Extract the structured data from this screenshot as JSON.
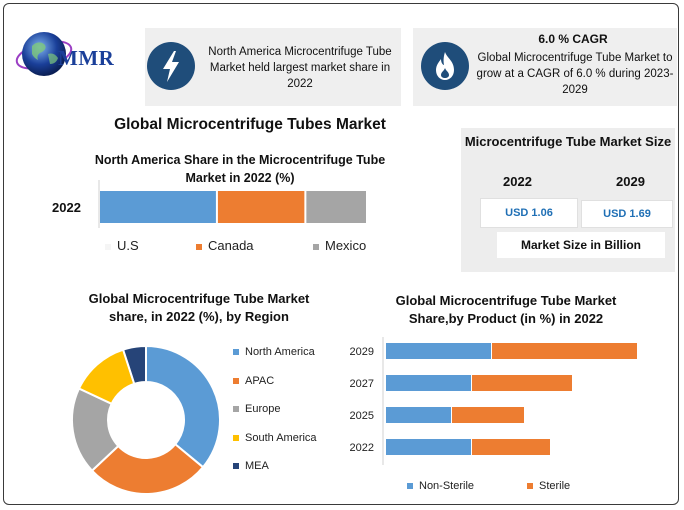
{
  "logo": {
    "text": "MMR"
  },
  "info1": {
    "text": "North America Microcentrifuge Tube Market held largest market share in 2022",
    "icon": "lightning-icon"
  },
  "info2": {
    "title": "6.0 % CAGR",
    "text": "Global Microcentrifuge Tube Market to grow at a CAGR of 6.0 % during 2023-2029",
    "icon": "flame-icon"
  },
  "main_title": "Global Microcentrifuge Tubes Market",
  "market_size": {
    "title": "Microcentrifuge Tube Market Size",
    "year_a": "2022",
    "year_b": "2029",
    "value_a": "USD 1.06",
    "value_b": "USD 1.69",
    "unit_label": "Market Size in Billion"
  },
  "colors": {
    "blue": "#5b9bd5",
    "orange": "#ed7d31",
    "gray": "#a5a5a5",
    "yellow": "#ffc000",
    "navy": "#264478",
    "icon_bg": "#1f4d7a"
  },
  "chart_data": [
    {
      "type": "bar",
      "stacked": true,
      "orientation": "horizontal",
      "title": "North America Share in the Microcentrifuge Tube Market in 2022 (%)",
      "categories": [
        "2022"
      ],
      "series": [
        {
          "name": "U.S",
          "values": [
            44
          ]
        },
        {
          "name": "Canada",
          "values": [
            33
          ]
        },
        {
          "name": "Mexico",
          "values": [
            23
          ]
        }
      ],
      "legend": "bottom"
    },
    {
      "type": "pie",
      "donut": true,
      "title": "Global Microcentrifuge Tube Market share, in 2022 (%), by Region",
      "labels": [
        "North America",
        "APAC",
        "Europe",
        "South America",
        "MEA"
      ],
      "values": [
        36,
        27,
        19,
        13,
        5
      ],
      "legend": "right"
    },
    {
      "type": "bar",
      "stacked": true,
      "orientation": "horizontal",
      "title": "Global Microcentrifuge Tube Market Share,by Product (in %) in 2022",
      "categories": [
        "2029",
        "2027",
        "2025",
        "2022"
      ],
      "series": [
        {
          "name": "Non-Sterile",
          "values": [
            105,
            85,
            65,
            85
          ]
        },
        {
          "name": "Sterile",
          "values": [
            145,
            100,
            72,
            78
          ]
        }
      ],
      "legend": "bottom"
    }
  ]
}
